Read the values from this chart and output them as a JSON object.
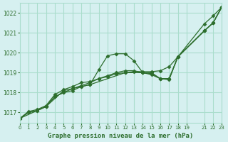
{
  "title": "Graphe pression niveau de la mer (hPa)",
  "bg_color": "#d6f0f0",
  "grid_color": "#aaddcc",
  "line_color": "#2d6e2d",
  "marker_color": "#2d6e2d",
  "xlim": [
    0,
    23
  ],
  "ylim": [
    1016.5,
    1022.5
  ],
  "xticks": [
    0,
    1,
    2,
    3,
    4,
    5,
    6,
    7,
    8,
    9,
    10,
    11,
    12,
    13,
    14,
    15,
    16,
    17,
    18,
    19,
    21,
    22,
    23
  ],
  "yticks": [
    1017,
    1018,
    1019,
    1020,
    1021,
    1022
  ],
  "series": [
    [
      0,
      1016.7,
      1,
      1017.0,
      2,
      1017.1,
      3,
      1017.3,
      4,
      1017.8,
      5,
      1018.0,
      6,
      1018.1,
      7,
      1018.3,
      8,
      1018.4,
      9,
      1019.15,
      10,
      1019.85,
      11,
      1019.95,
      12,
      1019.95,
      13,
      1019.6,
      14,
      1019.0,
      15,
      1019.0,
      16,
      1018.7,
      17,
      1018.65,
      18,
      1019.8,
      21,
      1021.45,
      22,
      1021.85,
      23,
      1022.3
    ],
    [
      0,
      1016.7,
      1,
      1017.0,
      2,
      1017.1,
      3,
      1017.3,
      4,
      1017.8,
      5,
      1018.0,
      6,
      1018.2,
      7,
      1018.35,
      8,
      1018.5,
      9,
      1018.7,
      10,
      1018.8,
      11,
      1018.95,
      12,
      1019.0,
      13,
      1019.05,
      14,
      1019.05,
      15,
      1019.05,
      16,
      1019.1,
      17,
      1019.3,
      18,
      1019.8,
      21,
      1021.1,
      22,
      1021.5,
      23,
      1022.3
    ],
    [
      0,
      1016.7,
      3,
      1017.3,
      5,
      1018.1,
      6,
      1018.2,
      7,
      1018.3,
      8,
      1018.4,
      12,
      1019.0,
      14,
      1019.0,
      15,
      1018.9,
      16,
      1018.7,
      17,
      1018.7,
      18,
      1019.8,
      21,
      1021.1,
      22,
      1021.5,
      23,
      1022.3
    ],
    [
      0,
      1016.7,
      1,
      1017.05,
      2,
      1017.15,
      3,
      1017.35,
      4,
      1017.9,
      5,
      1018.15,
      6,
      1018.3,
      7,
      1018.5,
      8,
      1018.55,
      9,
      1018.7,
      10,
      1018.85,
      11,
      1019.0,
      12,
      1019.1,
      13,
      1019.1,
      14,
      1019.0,
      15,
      1018.95,
      16,
      1018.7,
      17,
      1018.7,
      18,
      1019.8,
      21,
      1021.1,
      22,
      1021.5,
      23,
      1022.3
    ]
  ]
}
